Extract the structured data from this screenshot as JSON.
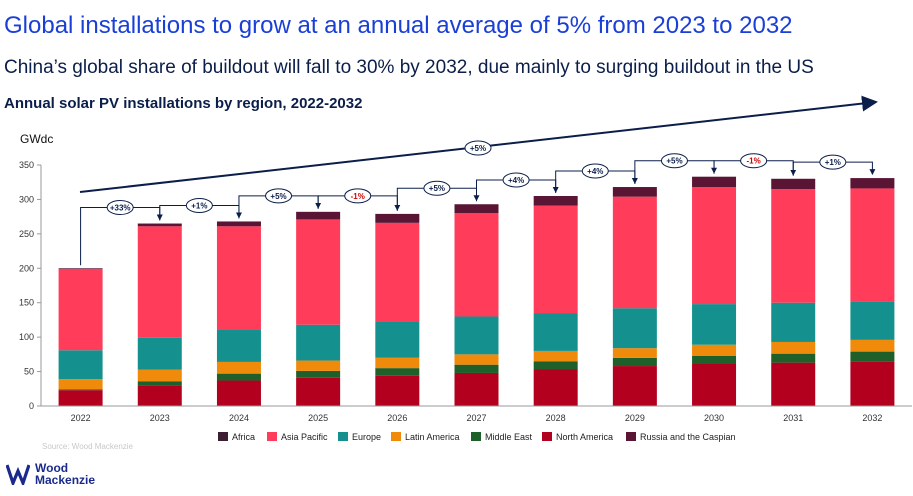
{
  "header": {
    "title": "Global installations to grow at an annual average of 5% from 2023 to 2032",
    "subtitle": "China’s global share of buildout will fall to 30% by 2032, due mainly to surging buildout in the US"
  },
  "footer": {
    "source": "Source: Wood Mackenzie",
    "logo_line1": "Wood",
    "logo_line2": "Mackenzie"
  },
  "chart_data": {
    "type": "bar",
    "stacked": true,
    "title": "Annual solar PV installations by region, 2022-2032",
    "ylabel": "GWdc",
    "ylim": [
      0,
      350
    ],
    "yticks": [
      0,
      50,
      100,
      150,
      200,
      250,
      300,
      350
    ],
    "categories": [
      "2022",
      "2023",
      "2024",
      "2025",
      "2026",
      "2027",
      "2028",
      "2029",
      "2030",
      "2031",
      "2032"
    ],
    "series": [
      {
        "name": "North America",
        "color": "#b2001e",
        "values": [
          23,
          30,
          37,
          41,
          44,
          48,
          53,
          58,
          61,
          63,
          65
        ]
      },
      {
        "name": "Middle East",
        "color": "#1f5f2a",
        "values": [
          1,
          6,
          10,
          10,
          11,
          12,
          12,
          12,
          12,
          13,
          14
        ]
      },
      {
        "name": "Latin America",
        "color": "#f08a0b",
        "values": [
          15,
          17,
          17,
          15,
          15,
          15,
          15,
          14,
          16,
          17,
          17
        ]
      },
      {
        "name": "Europe",
        "color": "#14918f",
        "values": [
          42,
          46,
          47,
          52,
          52,
          55,
          55,
          58,
          59,
          57,
          56
        ]
      },
      {
        "name": "Asia Pacific",
        "color": "#ff3c5a",
        "values": [
          118,
          162,
          150,
          153,
          144,
          150,
          156,
          162,
          170,
          165,
          164
        ]
      },
      {
        "name": "Russia and the Caspian",
        "color": "#5a1535",
        "values": [
          1,
          4,
          7,
          11,
          13,
          13,
          14,
          14,
          15,
          15,
          15
        ]
      },
      {
        "name": "Africa",
        "color": "#3d1f33",
        "values": [
          0,
          0,
          0,
          0,
          0,
          0,
          0,
          0,
          0,
          0,
          0
        ]
      }
    ],
    "legend": [
      "Africa",
      "Asia Pacific",
      "Europe",
      "Latin America",
      "Middle East",
      "North America",
      "Russia and the Caspian"
    ],
    "legend_position": "bottom",
    "growth_labels": [
      {
        "from": "2022",
        "to": "2023",
        "label": "+33%"
      },
      {
        "from": "2023",
        "to": "2024",
        "label": "+1%"
      },
      {
        "from": "2024",
        "to": "2025",
        "label": "+5%"
      },
      {
        "from": "2025",
        "to": "2026",
        "label": "-1%"
      },
      {
        "from": "2026",
        "to": "2027",
        "label": "+5%"
      },
      {
        "from": "2027",
        "to": "2028",
        "label": "+4%"
      },
      {
        "from": "2028",
        "to": "2029",
        "label": "+4%"
      },
      {
        "from": "2029",
        "to": "2030",
        "label": "+5%"
      },
      {
        "from": "2030",
        "to": "2031",
        "label": "-1%"
      },
      {
        "from": "2031",
        "to": "2032",
        "label": "+1%"
      }
    ],
    "trend_label": "+5%"
  }
}
